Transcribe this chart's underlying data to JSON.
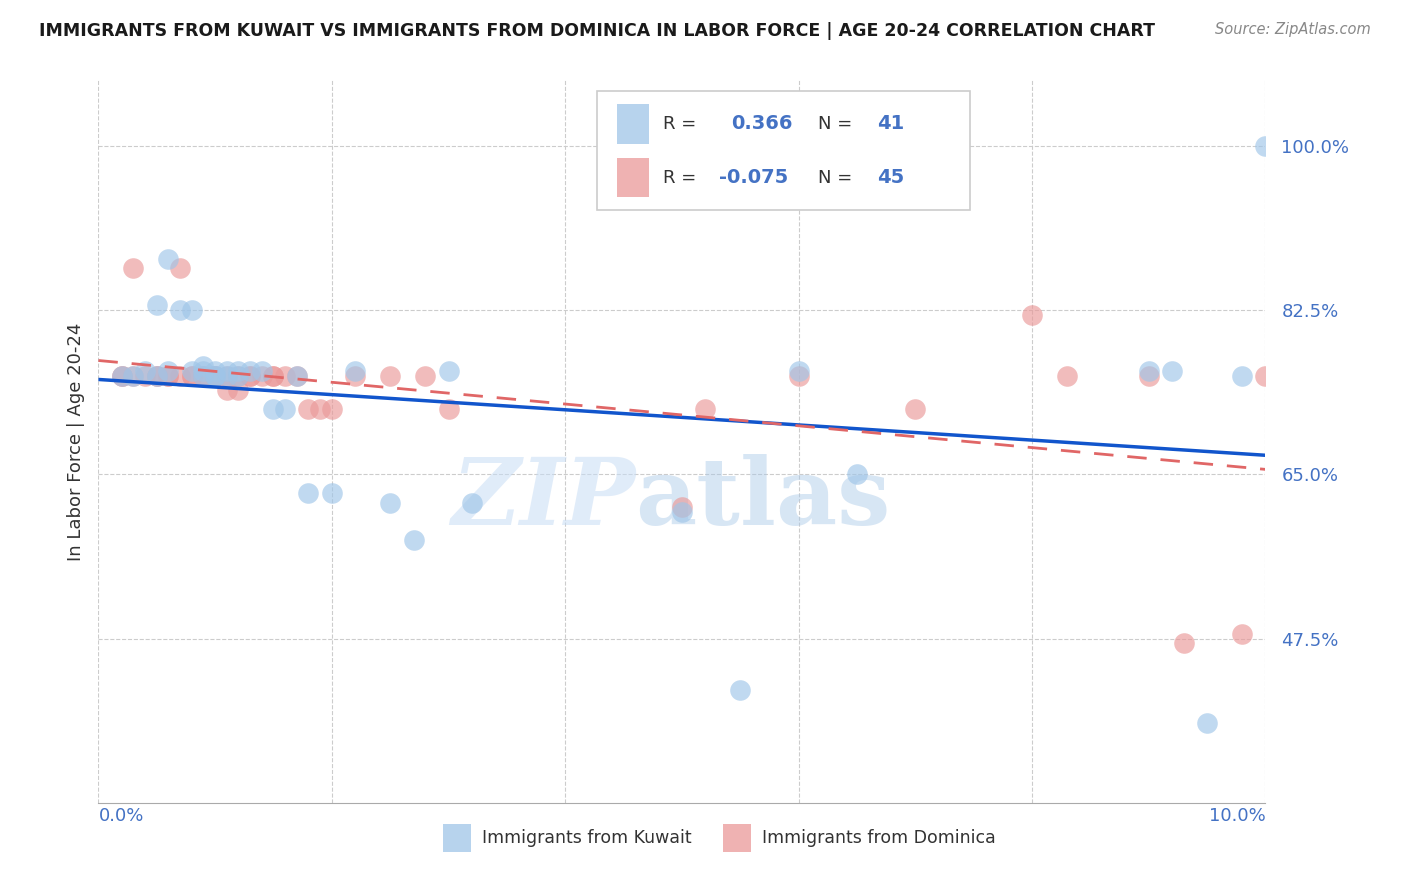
{
  "title": "IMMIGRANTS FROM KUWAIT VS IMMIGRANTS FROM DOMINICA IN LABOR FORCE | AGE 20-24 CORRELATION CHART",
  "source": "Source: ZipAtlas.com",
  "ylabel": "In Labor Force | Age 20-24",
  "xlim": [
    0.0,
    0.1
  ],
  "ylim": [
    0.3,
    1.07
  ],
  "yticks": [
    0.475,
    0.65,
    0.825,
    1.0
  ],
  "ytick_labels": [
    "47.5%",
    "65.0%",
    "82.5%",
    "100.0%"
  ],
  "right_axis_color": "#4472c4",
  "kuwait_color": "#9fc5e8",
  "dominica_color": "#ea9999",
  "kuwait_line_color": "#1155cc",
  "dominica_line_color": "#e06666",
  "legend_r_kuwait": "0.366",
  "legend_n_kuwait": "41",
  "legend_r_dominica": "-0.075",
  "legend_n_dominica": "45",
  "legend_label_kuwait": "Immigrants from Kuwait",
  "legend_label_dominica": "Immigrants from Dominica",
  "watermark_zip": "ZIP",
  "watermark_atlas": "atlas",
  "kuwait_x": [
    0.002,
    0.003,
    0.004,
    0.005,
    0.005,
    0.006,
    0.006,
    0.007,
    0.008,
    0.008,
    0.009,
    0.009,
    0.009,
    0.01,
    0.01,
    0.01,
    0.011,
    0.011,
    0.012,
    0.012,
    0.013,
    0.014,
    0.015,
    0.016,
    0.017,
    0.018,
    0.02,
    0.022,
    0.025,
    0.027,
    0.03,
    0.032,
    0.05,
    0.055,
    0.06,
    0.065,
    0.09,
    0.092,
    0.095,
    0.098,
    0.1
  ],
  "kuwait_y": [
    0.755,
    0.755,
    0.76,
    0.755,
    0.83,
    0.88,
    0.76,
    0.825,
    0.825,
    0.76,
    0.755,
    0.76,
    0.765,
    0.755,
    0.76,
    0.755,
    0.755,
    0.76,
    0.76,
    0.755,
    0.76,
    0.76,
    0.72,
    0.72,
    0.755,
    0.63,
    0.63,
    0.76,
    0.62,
    0.58,
    0.76,
    0.62,
    0.61,
    0.42,
    0.76,
    0.65,
    0.76,
    0.76,
    0.385,
    0.755,
    1.0
  ],
  "dominica_x": [
    0.002,
    0.002,
    0.003,
    0.003,
    0.004,
    0.005,
    0.005,
    0.006,
    0.006,
    0.007,
    0.007,
    0.008,
    0.008,
    0.009,
    0.009,
    0.01,
    0.01,
    0.011,
    0.011,
    0.012,
    0.012,
    0.013,
    0.013,
    0.014,
    0.015,
    0.015,
    0.016,
    0.017,
    0.018,
    0.019,
    0.02,
    0.022,
    0.025,
    0.028,
    0.03,
    0.05,
    0.052,
    0.06,
    0.07,
    0.08,
    0.083,
    0.09,
    0.093,
    0.098,
    0.1
  ],
  "dominica_y": [
    0.755,
    0.755,
    0.87,
    0.755,
    0.755,
    0.755,
    0.755,
    0.755,
    0.755,
    0.755,
    0.87,
    0.755,
    0.755,
    0.755,
    0.755,
    0.755,
    0.755,
    0.755,
    0.74,
    0.755,
    0.74,
    0.755,
    0.755,
    0.755,
    0.755,
    0.755,
    0.755,
    0.755,
    0.72,
    0.72,
    0.72,
    0.755,
    0.755,
    0.755,
    0.72,
    0.615,
    0.72,
    0.755,
    0.72,
    0.82,
    0.755,
    0.755,
    0.47,
    0.48,
    0.755
  ]
}
